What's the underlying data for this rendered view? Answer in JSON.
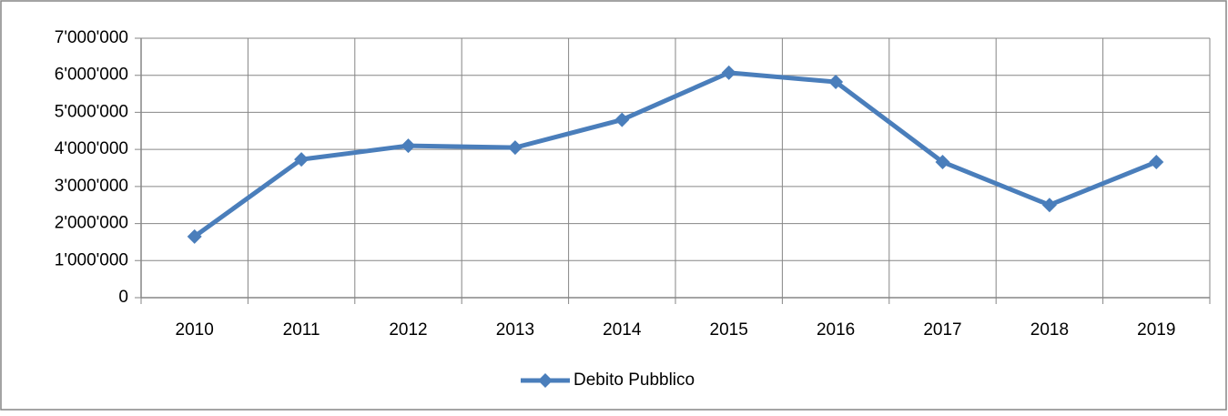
{
  "chart_data": {
    "type": "line",
    "categories": [
      "2010",
      "2011",
      "2012",
      "2013",
      "2014",
      "2015",
      "2016",
      "2017",
      "2018",
      "2019"
    ],
    "series": [
      {
        "name": "Debito Pubblico",
        "color": "#4a7ebb",
        "values": [
          1650000,
          3730000,
          4100000,
          4050000,
          4800000,
          6070000,
          5820000,
          3660000,
          2500000,
          3660000
        ]
      }
    ],
    "ylim": [
      0,
      7000000
    ],
    "yticks": [
      0,
      {
        "value": 1000000,
        "label": "1'000'000"
      },
      {
        "value": 2000000,
        "label": "2'000'000"
      },
      {
        "value": 3000000,
        "label": "3'000'000"
      },
      {
        "value": 4000000,
        "label": "4'000'000"
      },
      {
        "value": 5000000,
        "label": "5'000'000"
      },
      {
        "value": 6000000,
        "label": "6'000'000"
      },
      {
        "value": 7000000,
        "label": "7'000'000"
      }
    ],
    "grid": true,
    "legend": "bottom"
  }
}
